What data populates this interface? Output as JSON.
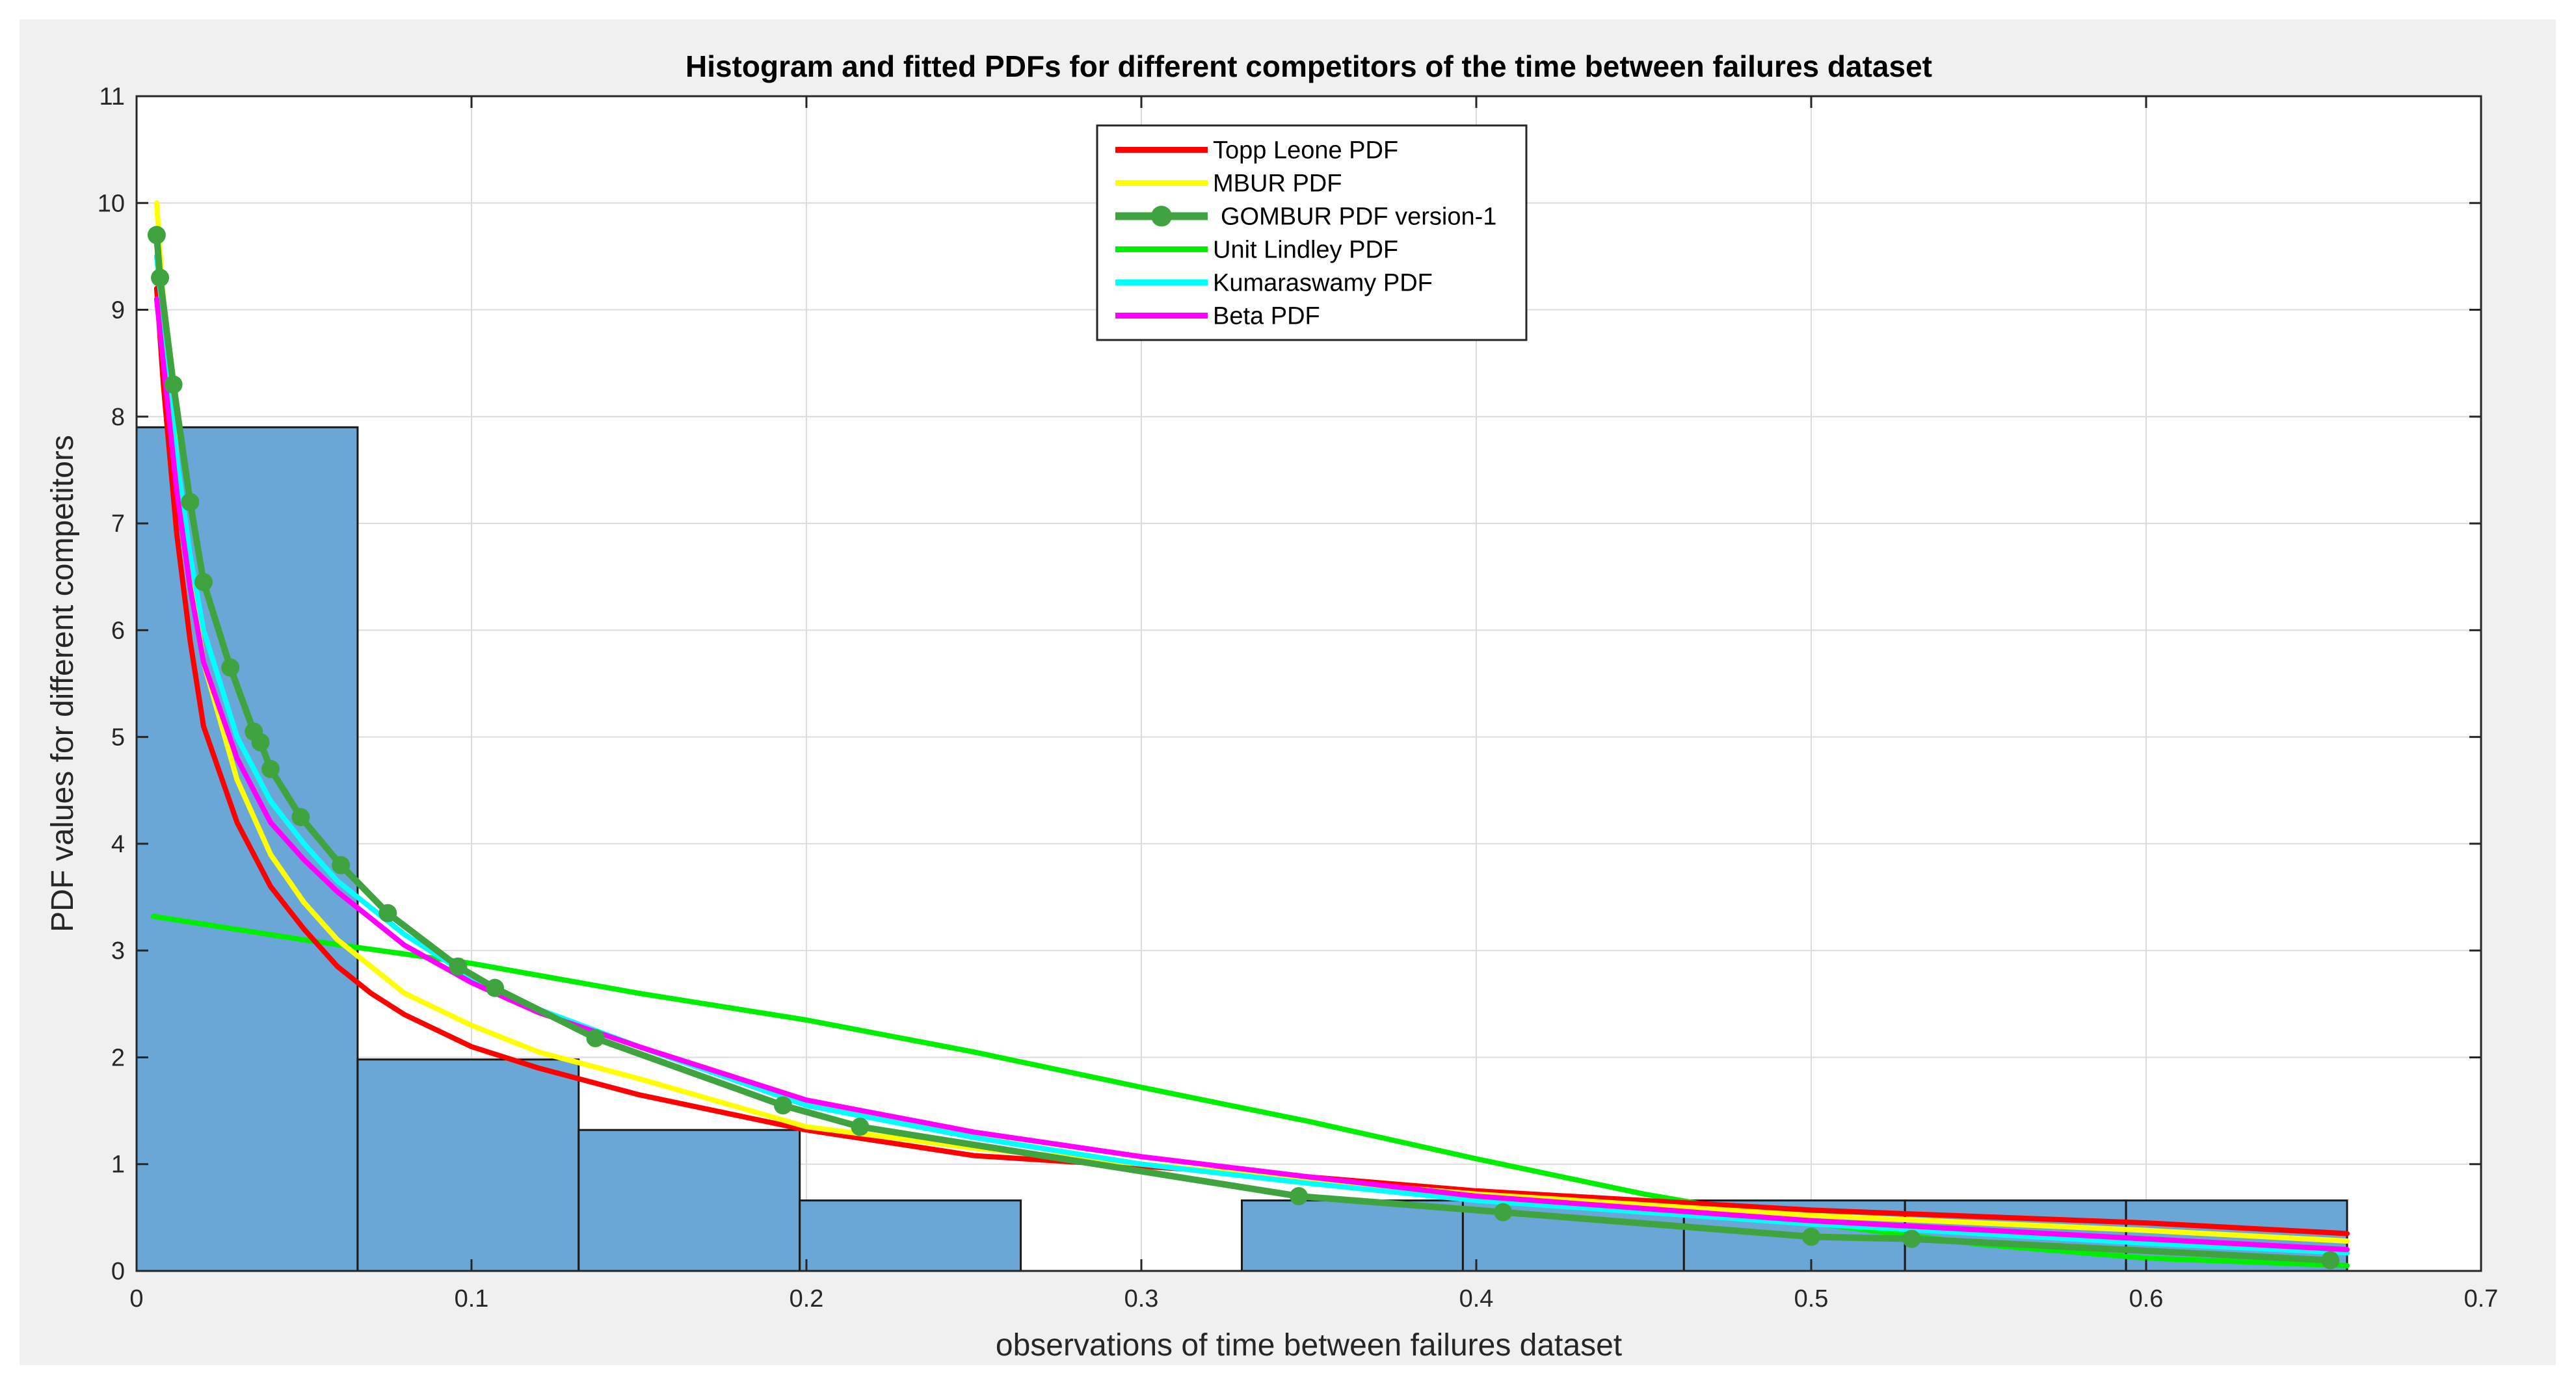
{
  "chart_data": {
    "type": "histogram+line",
    "title": "Histogram and fitted PDFs for different competitors of the time between failures dataset",
    "xlabel": "observations of time between failures dataset",
    "ylabel": "PDF values for different competitors",
    "xlim": [
      0,
      0.7
    ],
    "ylim": [
      0,
      11
    ],
    "xticks": [
      0,
      0.1,
      0.2,
      0.3,
      0.4,
      0.5,
      0.6,
      0.7
    ],
    "xtick_labels": [
      "0",
      "0.1",
      "0.2",
      "0.3",
      "0.4",
      "0.5",
      "0.6",
      "0.7"
    ],
    "yticks": [
      0,
      1,
      2,
      3,
      4,
      5,
      6,
      7,
      8,
      9,
      10,
      11
    ],
    "ytick_labels": [
      "0",
      "1",
      "2",
      "3",
      "4",
      "5",
      "6",
      "7",
      "8",
      "9",
      "10",
      "11"
    ],
    "grid": true,
    "legend_position": "top-center",
    "histogram": {
      "color": "#6aa7d6",
      "edges": [
        0,
        0.066,
        0.132,
        0.198,
        0.264,
        0.33,
        0.396,
        0.462,
        0.528,
        0.594,
        0.66
      ],
      "values": [
        7.9,
        1.98,
        1.32,
        0.66,
        0,
        0.66,
        0.66,
        0.66,
        0.66,
        0.66
      ]
    },
    "series": [
      {
        "name": "Topp Leone PDF",
        "color": "#ff0000",
        "markers": false,
        "x": [
          0.006,
          0.008,
          0.012,
          0.016,
          0.02,
          0.03,
          0.04,
          0.05,
          0.06,
          0.07,
          0.08,
          0.1,
          0.12,
          0.15,
          0.2,
          0.25,
          0.3,
          0.35,
          0.4,
          0.5,
          0.6,
          0.66
        ],
        "y": [
          9.2,
          8.3,
          6.9,
          5.9,
          5.1,
          4.2,
          3.6,
          3.2,
          2.85,
          2.6,
          2.4,
          2.1,
          1.9,
          1.65,
          1.32,
          1.08,
          0.98,
          0.88,
          0.75,
          0.57,
          0.45,
          0.35
        ]
      },
      {
        "name": "MBUR PDF",
        "color": "#ffff00",
        "markers": false,
        "x": [
          0.006,
          0.008,
          0.012,
          0.016,
          0.02,
          0.03,
          0.04,
          0.05,
          0.06,
          0.07,
          0.08,
          0.1,
          0.12,
          0.15,
          0.2,
          0.25,
          0.3,
          0.35,
          0.4,
          0.5,
          0.6,
          0.66
        ],
        "y": [
          10.0,
          9.1,
          7.6,
          6.5,
          5.7,
          4.6,
          3.9,
          3.45,
          3.1,
          2.85,
          2.6,
          2.3,
          2.05,
          1.8,
          1.35,
          1.15,
          1.0,
          0.85,
          0.72,
          0.52,
          0.38,
          0.28
        ]
      },
      {
        "name": "GOMBUR PDF version-1",
        "color": "#3fa33f",
        "markers": true,
        "x": [
          0.006,
          0.007,
          0.011,
          0.016,
          0.02,
          0.028,
          0.035,
          0.037,
          0.04,
          0.049,
          0.061,
          0.075,
          0.096,
          0.107,
          0.137,
          0.193,
          0.216,
          0.347,
          0.408,
          0.5,
          0.53,
          0.655
        ],
        "y": [
          9.7,
          9.3,
          8.3,
          7.2,
          6.45,
          5.65,
          5.05,
          4.95,
          4.7,
          4.25,
          3.8,
          3.35,
          2.85,
          2.65,
          2.18,
          1.55,
          1.35,
          0.7,
          0.55,
          0.32,
          0.3,
          0.1
        ]
      },
      {
        "name": "Unit Lindley PDF",
        "color": "#00ee00",
        "markers": false,
        "x": [
          0.005,
          0.05,
          0.1,
          0.15,
          0.2,
          0.25,
          0.3,
          0.35,
          0.4,
          0.45,
          0.5,
          0.55,
          0.6,
          0.66
        ],
        "y": [
          3.32,
          3.1,
          2.88,
          2.6,
          2.35,
          2.05,
          1.72,
          1.4,
          1.05,
          0.72,
          0.45,
          0.25,
          0.12,
          0.05
        ]
      },
      {
        "name": "Kumaraswamy PDF",
        "color": "#00ffff",
        "markers": false,
        "x": [
          0.006,
          0.008,
          0.012,
          0.016,
          0.02,
          0.03,
          0.04,
          0.05,
          0.06,
          0.07,
          0.08,
          0.1,
          0.12,
          0.15,
          0.2,
          0.25,
          0.3,
          0.35,
          0.4,
          0.5,
          0.6,
          0.66
        ],
        "y": [
          9.5,
          8.9,
          7.6,
          6.7,
          6.0,
          5.0,
          4.4,
          4.0,
          3.65,
          3.4,
          3.15,
          2.75,
          2.45,
          2.1,
          1.55,
          1.25,
          1.0,
          0.82,
          0.66,
          0.44,
          0.26,
          0.17
        ]
      },
      {
        "name": "Beta PDF",
        "color": "#ff00ff",
        "markers": false,
        "x": [
          0.006,
          0.008,
          0.012,
          0.016,
          0.02,
          0.03,
          0.04,
          0.05,
          0.06,
          0.07,
          0.08,
          0.1,
          0.12,
          0.15,
          0.2,
          0.25,
          0.3,
          0.35,
          0.4,
          0.5,
          0.6,
          0.66
        ],
        "y": [
          9.1,
          8.5,
          7.3,
          6.4,
          5.7,
          4.8,
          4.2,
          3.85,
          3.55,
          3.3,
          3.05,
          2.7,
          2.42,
          2.1,
          1.6,
          1.3,
          1.07,
          0.88,
          0.7,
          0.47,
          0.3,
          0.2
        ]
      }
    ]
  }
}
